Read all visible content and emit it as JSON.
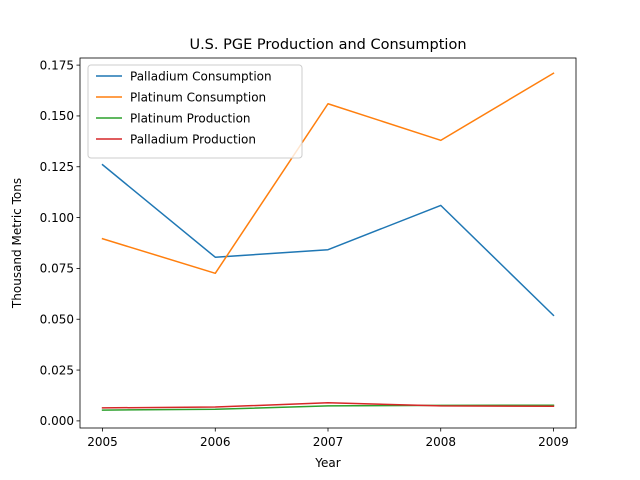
{
  "chart_data": {
    "type": "line",
    "title": "U.S. PGE Production and Consumption",
    "xlabel": "Year",
    "ylabel": "Thousand Metric Tons",
    "x": [
      2005,
      2006,
      2007,
      2008,
      2009
    ],
    "x_tick_labels": [
      "2005",
      "2006",
      "2007",
      "2008",
      "2009"
    ],
    "y_ticks": [
      0.0,
      0.025,
      0.05,
      0.075,
      0.1,
      0.125,
      0.15,
      0.175
    ],
    "y_tick_labels": [
      "0.000",
      "0.025",
      "0.050",
      "0.075",
      "0.100",
      "0.125",
      "0.150",
      "0.175"
    ],
    "xlim": [
      2004.8,
      2009.2
    ],
    "ylim": [
      -0.0035,
      0.1785
    ],
    "grid": false,
    "legend_position": "top-left",
    "series": [
      {
        "name": "Palladium Consumption",
        "color": "#1f77b4",
        "values": [
          0.126,
          0.0805,
          0.0842,
          0.106,
          0.0519
        ]
      },
      {
        "name": "Platinum Consumption",
        "color": "#ff7f0e",
        "values": [
          0.0896,
          0.0726,
          0.156,
          0.138,
          0.171
        ]
      },
      {
        "name": "Platinum Production",
        "color": "#2ca02c",
        "values": [
          0.0053,
          0.0057,
          0.0074,
          0.0076,
          0.0077
        ]
      },
      {
        "name": "Palladium Production",
        "color": "#d62728",
        "values": [
          0.0064,
          0.0068,
          0.0089,
          0.0074,
          0.0072
        ]
      }
    ]
  }
}
